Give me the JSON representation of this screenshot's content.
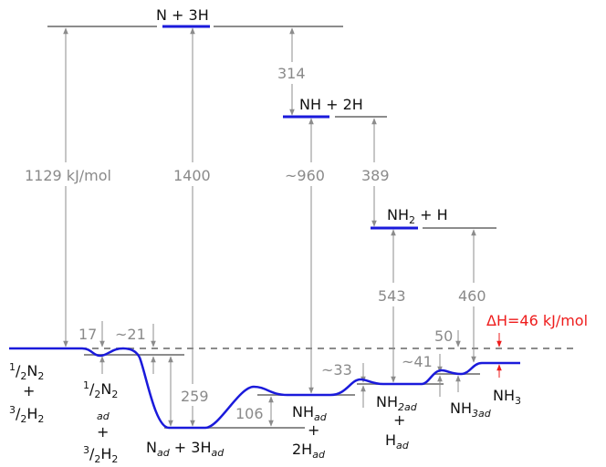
{
  "species": {
    "n_3h": "N + 3H",
    "nh_2h": "NH + 2H",
    "nh2_h": {
      "main": "NH",
      "sub": "2",
      "rest": " + H"
    },
    "half_n2": {
      "num": "1",
      "den": "2",
      "mol": "N",
      "sub": "2"
    },
    "plus": "+",
    "three_half_h2": {
      "num": "3",
      "den": "2",
      "mol": "H",
      "sub": "2"
    },
    "ad": "ad",
    "n_ad_3h_ad": {
      "n": "N",
      "ad": "ad",
      "rest": " + 3H"
    },
    "nh_ad": {
      "main": "NH",
      "ad": "ad"
    },
    "two_h_ad": {
      "main": "2H",
      "ad": "ad"
    },
    "nh2_ad": {
      "main": "NH",
      "sub": "2ad"
    },
    "h_ad": {
      "main": "H",
      "ad": "ad"
    },
    "nh3_ad": {
      "main": "NH",
      "sub": "3ad"
    },
    "nh3": {
      "main": "NH",
      "sub": "3"
    }
  },
  "energies": {
    "e1129": "1129 kJ/mol",
    "e1400": "1400",
    "e314": "314",
    "e960": "~960",
    "e389": "389",
    "e543": "543",
    "e460": "460",
    "e17": "17",
    "e21": "~21",
    "e259": "259",
    "e106": "106",
    "e33": "~33",
    "e41": "~41",
    "e50": "50"
  },
  "delta_h": "ΔH=46 kJ/mol",
  "colors": {
    "profile": "#1a1adb",
    "levels": "#8c8c8c",
    "reference": "#8c8c8c",
    "delta_h": "#ee1c1c"
  }
}
